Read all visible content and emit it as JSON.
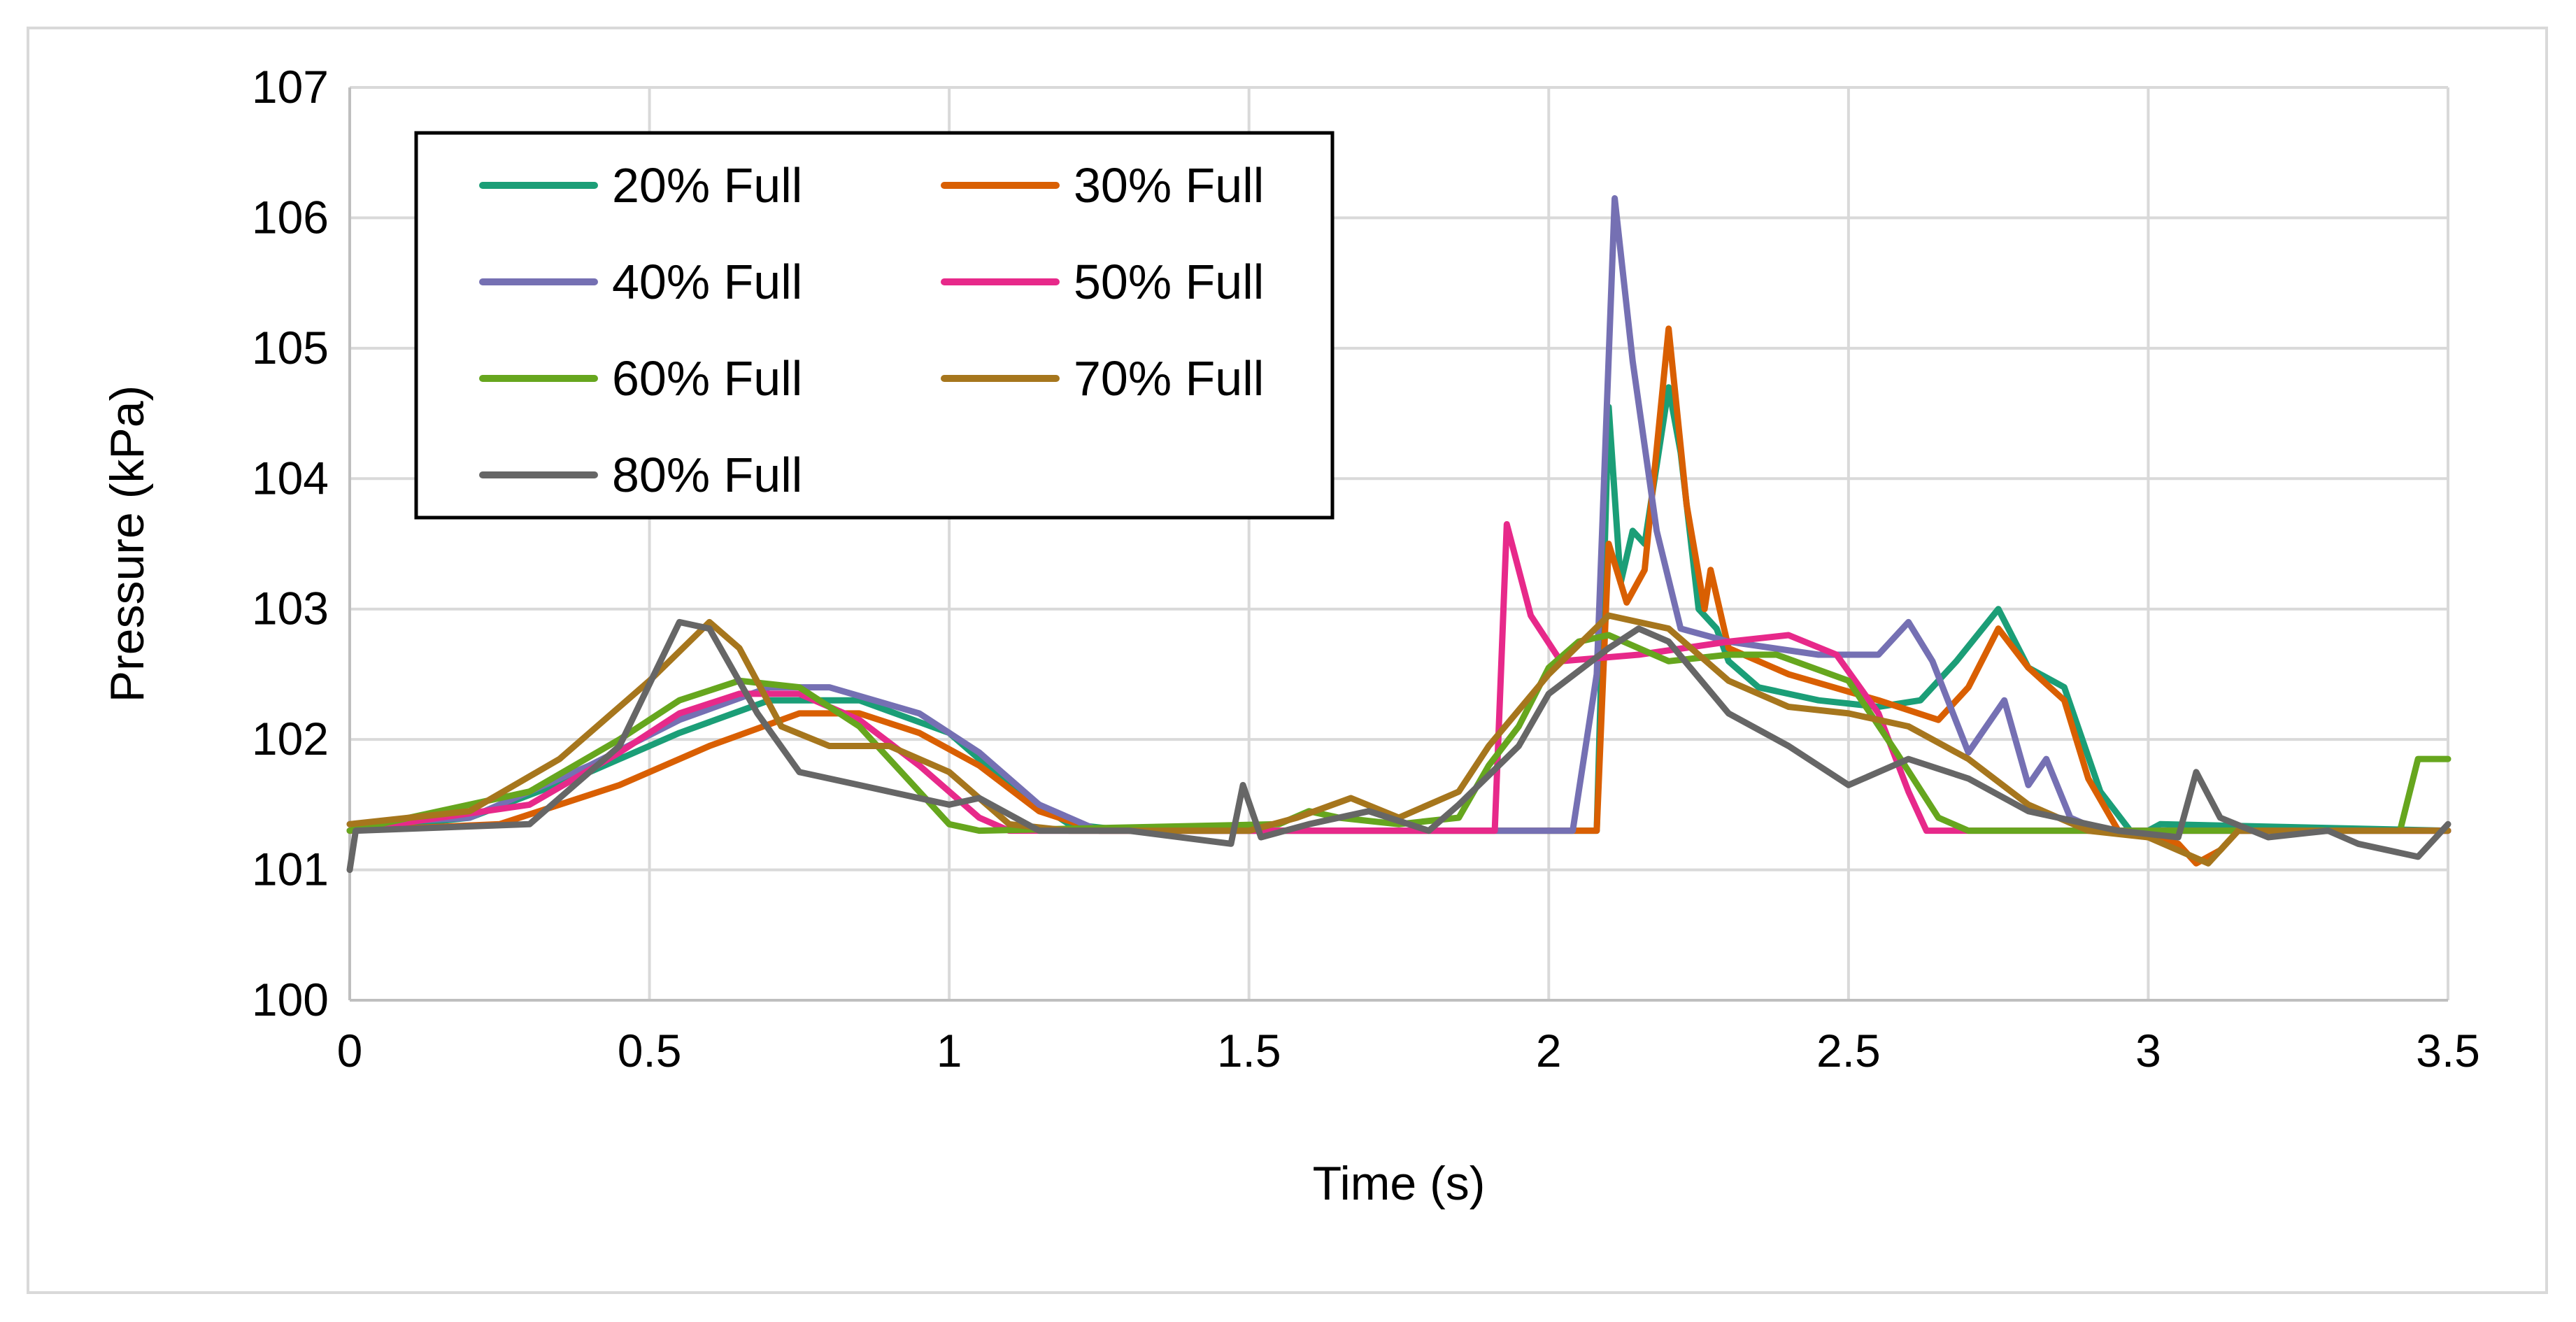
{
  "chart_data": {
    "type": "line",
    "title": "",
    "xlabel": "Time (s)",
    "ylabel": "Pressure (kPa)",
    "xlim": [
      0,
      3.5
    ],
    "ylim": [
      100,
      107
    ],
    "xticks": [
      0,
      0.5,
      1,
      1.5,
      2,
      2.5,
      3,
      3.5
    ],
    "xtick_labels": [
      "0",
      "0.5",
      "1",
      "1.5",
      "2",
      "2.5",
      "3",
      "3.5"
    ],
    "yticks": [
      100,
      101,
      102,
      103,
      104,
      105,
      106,
      107
    ],
    "ytick_labels": [
      "100",
      "101",
      "102",
      "103",
      "104",
      "105",
      "106",
      "107"
    ],
    "grid": true,
    "legend_position": "top-left",
    "series": [
      {
        "name": "20% Full",
        "color": "#1b9e77",
        "points": [
          [
            0,
            101.3
          ],
          [
            0.2,
            101.4
          ],
          [
            0.4,
            101.75
          ],
          [
            0.55,
            102.05
          ],
          [
            0.7,
            102.3
          ],
          [
            0.85,
            102.3
          ],
          [
            1.0,
            102.05
          ],
          [
            1.1,
            101.65
          ],
          [
            1.2,
            101.35
          ],
          [
            1.3,
            101.3
          ],
          [
            1.8,
            101.3
          ],
          [
            2.08,
            101.3
          ],
          [
            2.1,
            104.55
          ],
          [
            2.12,
            103.2
          ],
          [
            2.14,
            103.6
          ],
          [
            2.16,
            103.5
          ],
          [
            2.2,
            104.7
          ],
          [
            2.22,
            104.2
          ],
          [
            2.25,
            103.0
          ],
          [
            2.28,
            102.85
          ],
          [
            2.3,
            102.6
          ],
          [
            2.35,
            102.4
          ],
          [
            2.45,
            102.3
          ],
          [
            2.55,
            102.25
          ],
          [
            2.62,
            102.3
          ],
          [
            2.68,
            102.6
          ],
          [
            2.75,
            103.0
          ],
          [
            2.8,
            102.55
          ],
          [
            2.86,
            102.4
          ],
          [
            2.92,
            101.6
          ],
          [
            2.97,
            101.3
          ],
          [
            3.0,
            101.3
          ],
          [
            3.02,
            101.35
          ],
          [
            3.5,
            101.3
          ]
        ]
      },
      {
        "name": "30% Full",
        "color": "#d95f02",
        "points": [
          [
            0,
            101.3
          ],
          [
            0.25,
            101.35
          ],
          [
            0.45,
            101.65
          ],
          [
            0.6,
            101.95
          ],
          [
            0.75,
            102.2
          ],
          [
            0.85,
            102.2
          ],
          [
            0.95,
            102.05
          ],
          [
            1.05,
            101.8
          ],
          [
            1.15,
            101.45
          ],
          [
            1.25,
            101.3
          ],
          [
            1.8,
            101.3
          ],
          [
            2.08,
            101.3
          ],
          [
            2.1,
            103.5
          ],
          [
            2.13,
            103.05
          ],
          [
            2.16,
            103.3
          ],
          [
            2.2,
            105.15
          ],
          [
            2.23,
            103.8
          ],
          [
            2.26,
            103.0
          ],
          [
            2.27,
            103.3
          ],
          [
            2.3,
            102.7
          ],
          [
            2.4,
            102.5
          ],
          [
            2.55,
            102.3
          ],
          [
            2.65,
            102.15
          ],
          [
            2.7,
            102.4
          ],
          [
            2.75,
            102.85
          ],
          [
            2.8,
            102.55
          ],
          [
            2.86,
            102.3
          ],
          [
            2.9,
            101.7
          ],
          [
            2.95,
            101.3
          ],
          [
            3.05,
            101.2
          ],
          [
            3.08,
            101.05
          ],
          [
            3.12,
            101.15
          ],
          [
            3.15,
            101.3
          ],
          [
            3.5,
            101.3
          ]
        ]
      },
      {
        "name": "40% Full",
        "color": "#7570b3",
        "points": [
          [
            0,
            101.35
          ],
          [
            0.2,
            101.4
          ],
          [
            0.4,
            101.8
          ],
          [
            0.55,
            102.15
          ],
          [
            0.7,
            102.4
          ],
          [
            0.8,
            102.4
          ],
          [
            0.95,
            102.2
          ],
          [
            1.05,
            101.9
          ],
          [
            1.15,
            101.5
          ],
          [
            1.25,
            101.3
          ],
          [
            1.8,
            101.3
          ],
          [
            2.04,
            101.3
          ],
          [
            2.08,
            102.5
          ],
          [
            2.11,
            106.15
          ],
          [
            2.14,
            104.9
          ],
          [
            2.18,
            103.6
          ],
          [
            2.22,
            102.85
          ],
          [
            2.3,
            102.75
          ],
          [
            2.45,
            102.65
          ],
          [
            2.55,
            102.65
          ],
          [
            2.6,
            102.9
          ],
          [
            2.64,
            102.6
          ],
          [
            2.7,
            101.9
          ],
          [
            2.76,
            102.3
          ],
          [
            2.8,
            101.65
          ],
          [
            2.83,
            101.85
          ],
          [
            2.87,
            101.4
          ],
          [
            2.92,
            101.3
          ],
          [
            3.5,
            101.3
          ]
        ]
      },
      {
        "name": "50% Full",
        "color": "#e7298a",
        "points": [
          [
            0,
            101.3
          ],
          [
            0.3,
            101.5
          ],
          [
            0.45,
            101.9
          ],
          [
            0.55,
            102.2
          ],
          [
            0.65,
            102.35
          ],
          [
            0.75,
            102.35
          ],
          [
            0.85,
            102.15
          ],
          [
            0.95,
            101.8
          ],
          [
            1.05,
            101.4
          ],
          [
            1.1,
            101.3
          ],
          [
            1.85,
            101.3
          ],
          [
            1.91,
            101.3
          ],
          [
            1.93,
            103.65
          ],
          [
            1.97,
            102.95
          ],
          [
            2.02,
            102.6
          ],
          [
            2.15,
            102.65
          ],
          [
            2.3,
            102.75
          ],
          [
            2.4,
            102.8
          ],
          [
            2.48,
            102.65
          ],
          [
            2.55,
            102.2
          ],
          [
            2.6,
            101.6
          ],
          [
            2.63,
            101.3
          ],
          [
            3.5,
            101.3
          ]
        ]
      },
      {
        "name": "60% Full",
        "color": "#66a61e",
        "points": [
          [
            0,
            101.3
          ],
          [
            0.3,
            101.6
          ],
          [
            0.45,
            102.0
          ],
          [
            0.55,
            102.3
          ],
          [
            0.65,
            102.45
          ],
          [
            0.75,
            102.4
          ],
          [
            0.85,
            102.1
          ],
          [
            0.95,
            101.6
          ],
          [
            1.0,
            101.35
          ],
          [
            1.05,
            101.3
          ],
          [
            1.55,
            101.35
          ],
          [
            1.6,
            101.45
          ],
          [
            1.65,
            101.4
          ],
          [
            1.75,
            101.35
          ],
          [
            1.85,
            101.4
          ],
          [
            1.9,
            101.8
          ],
          [
            1.95,
            102.1
          ],
          [
            2.0,
            102.55
          ],
          [
            2.05,
            102.75
          ],
          [
            2.1,
            102.8
          ],
          [
            2.2,
            102.6
          ],
          [
            2.3,
            102.65
          ],
          [
            2.38,
            102.65
          ],
          [
            2.5,
            102.45
          ],
          [
            2.58,
            101.9
          ],
          [
            2.65,
            101.4
          ],
          [
            2.7,
            101.3
          ],
          [
            3.42,
            101.3
          ],
          [
            3.45,
            101.85
          ],
          [
            3.5,
            101.85
          ]
        ]
      },
      {
        "name": "70% Full",
        "color": "#a6761d",
        "points": [
          [
            0,
            101.35
          ],
          [
            0.2,
            101.45
          ],
          [
            0.35,
            101.85
          ],
          [
            0.5,
            102.45
          ],
          [
            0.6,
            102.9
          ],
          [
            0.65,
            102.7
          ],
          [
            0.72,
            102.1
          ],
          [
            0.8,
            101.95
          ],
          [
            0.9,
            101.95
          ],
          [
            1.0,
            101.75
          ],
          [
            1.1,
            101.35
          ],
          [
            1.2,
            101.3
          ],
          [
            1.5,
            101.3
          ],
          [
            1.58,
            101.4
          ],
          [
            1.67,
            101.55
          ],
          [
            1.75,
            101.4
          ],
          [
            1.85,
            101.6
          ],
          [
            1.9,
            101.95
          ],
          [
            2.0,
            102.5
          ],
          [
            2.1,
            102.95
          ],
          [
            2.2,
            102.85
          ],
          [
            2.3,
            102.45
          ],
          [
            2.4,
            102.25
          ],
          [
            2.5,
            102.2
          ],
          [
            2.6,
            102.1
          ],
          [
            2.7,
            101.85
          ],
          [
            2.8,
            101.5
          ],
          [
            2.9,
            101.3
          ],
          [
            3.0,
            101.25
          ],
          [
            3.05,
            101.15
          ],
          [
            3.1,
            101.05
          ],
          [
            3.15,
            101.3
          ],
          [
            3.5,
            101.3
          ]
        ]
      },
      {
        "name": "80% Full",
        "color": "#666666",
        "points": [
          [
            0,
            101.0
          ],
          [
            0.01,
            101.3
          ],
          [
            0.3,
            101.35
          ],
          [
            0.45,
            101.95
          ],
          [
            0.55,
            102.9
          ],
          [
            0.6,
            102.85
          ],
          [
            0.68,
            102.2
          ],
          [
            0.75,
            101.75
          ],
          [
            0.85,
            101.65
          ],
          [
            1.0,
            101.5
          ],
          [
            1.05,
            101.55
          ],
          [
            1.15,
            101.3
          ],
          [
            1.3,
            101.3
          ],
          [
            1.47,
            101.2
          ],
          [
            1.49,
            101.65
          ],
          [
            1.52,
            101.25
          ],
          [
            1.6,
            101.35
          ],
          [
            1.7,
            101.45
          ],
          [
            1.8,
            101.3
          ],
          [
            1.85,
            101.5
          ],
          [
            1.95,
            101.95
          ],
          [
            2.0,
            102.35
          ],
          [
            2.1,
            102.7
          ],
          [
            2.15,
            102.85
          ],
          [
            2.2,
            102.75
          ],
          [
            2.3,
            102.2
          ],
          [
            2.4,
            101.95
          ],
          [
            2.5,
            101.65
          ],
          [
            2.55,
            101.75
          ],
          [
            2.6,
            101.85
          ],
          [
            2.7,
            101.7
          ],
          [
            2.8,
            101.45
          ],
          [
            2.95,
            101.3
          ],
          [
            3.05,
            101.25
          ],
          [
            3.08,
            101.75
          ],
          [
            3.12,
            101.4
          ],
          [
            3.2,
            101.25
          ],
          [
            3.3,
            101.3
          ],
          [
            3.35,
            101.2
          ],
          [
            3.45,
            101.1
          ],
          [
            3.5,
            101.35
          ]
        ]
      }
    ]
  }
}
